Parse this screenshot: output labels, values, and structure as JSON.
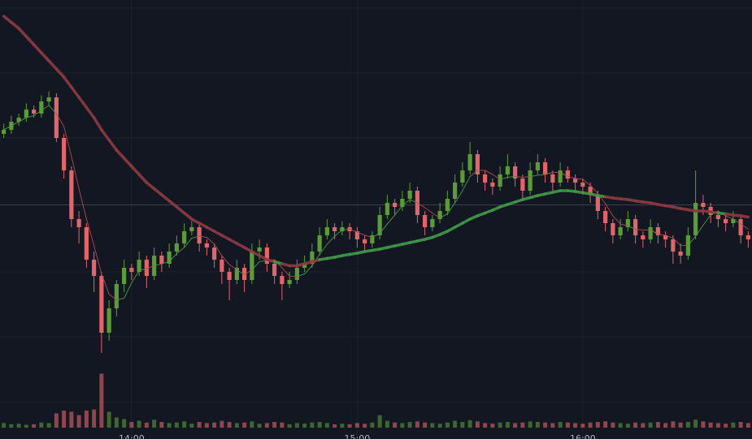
{
  "chart_data": {
    "type": "candlestick",
    "xlim": [
      0,
      100
    ],
    "xticks": [
      {
        "value": 17.5,
        "label": "14:00"
      },
      {
        "value": 47.5,
        "label": "15:00"
      },
      {
        "value": 77.5,
        "label": "16:00"
      }
    ],
    "ylim": [
      0,
      100
    ],
    "yticks": [
      1,
      17,
      33,
      49.5,
      66,
      82,
      98
    ],
    "price_line": 49.5,
    "vlim": [
      0,
      100
    ],
    "grid": true,
    "up_color": "#5b9c3a",
    "down_color": "#e2656b",
    "candles": [
      [
        67,
        69.5,
        66,
        68
      ],
      [
        68,
        71.5,
        67,
        70
      ],
      [
        70,
        72,
        69,
        71
      ],
      [
        71,
        74.5,
        70,
        73
      ],
      [
        73,
        74,
        71,
        72
      ],
      [
        72,
        76.5,
        71,
        75
      ],
      [
        75,
        77.5,
        74,
        76
      ],
      [
        76,
        77,
        65,
        66
      ],
      [
        66,
        67,
        56,
        58
      ],
      [
        58,
        59,
        44,
        46
      ],
      [
        46,
        48,
        40,
        44
      ],
      [
        44,
        45,
        34,
        36
      ],
      [
        36,
        38,
        28,
        32
      ],
      [
        32,
        33,
        13,
        18
      ],
      [
        18,
        26,
        16,
        24
      ],
      [
        24,
        31,
        22,
        30
      ],
      [
        30,
        36,
        28,
        34
      ],
      [
        34,
        35,
        31,
        33
      ],
      [
        33,
        38,
        32,
        36
      ],
      [
        36,
        37,
        29,
        32
      ],
      [
        32,
        39,
        31,
        37
      ],
      [
        37,
        38,
        33,
        35
      ],
      [
        35,
        40,
        34,
        38
      ],
      [
        38,
        42,
        37,
        40
      ],
      [
        40,
        45,
        39,
        43
      ],
      [
        43,
        45.5,
        42,
        44
      ],
      [
        44,
        45,
        38,
        40
      ],
      [
        40,
        41,
        37,
        39
      ],
      [
        39,
        40,
        34,
        36
      ],
      [
        36,
        37,
        30,
        33
      ],
      [
        33,
        34,
        26,
        31
      ],
      [
        31,
        36,
        30,
        34
      ],
      [
        34,
        35,
        28,
        31
      ],
      [
        31,
        40,
        30,
        38
      ],
      [
        38,
        41,
        36,
        39
      ],
      [
        39,
        40,
        33,
        35
      ],
      [
        35,
        36,
        30,
        32
      ],
      [
        32,
        33,
        26,
        30
      ],
      [
        30,
        33,
        29,
        31
      ],
      [
        31,
        36,
        30,
        34
      ],
      [
        34,
        37,
        33,
        35
      ],
      [
        35,
        40,
        34,
        38
      ],
      [
        38,
        44,
        37,
        42
      ],
      [
        42,
        46,
        41,
        44
      ],
      [
        44,
        45,
        41,
        43
      ],
      [
        43,
        45.5,
        42,
        44
      ],
      [
        44,
        45,
        41,
        43
      ],
      [
        43,
        44,
        39,
        41
      ],
      [
        41,
        42,
        38,
        40
      ],
      [
        40,
        43,
        39,
        42
      ],
      [
        42,
        49,
        41,
        47
      ],
      [
        47,
        52,
        46,
        50
      ],
      [
        50,
        51,
        47,
        49
      ],
      [
        49,
        53,
        48,
        51
      ],
      [
        51,
        55,
        50,
        53
      ],
      [
        53,
        54,
        45,
        47
      ],
      [
        47,
        48,
        42,
        44
      ],
      [
        44,
        47,
        43,
        46
      ],
      [
        46,
        50,
        45,
        48
      ],
      [
        48,
        53,
        47,
        51
      ],
      [
        51,
        57,
        50,
        55
      ],
      [
        55,
        60,
        54,
        58
      ],
      [
        58,
        65,
        57,
        62
      ],
      [
        62,
        63,
        55,
        57
      ],
      [
        57,
        58,
        53,
        55
      ],
      [
        55,
        56,
        52,
        54
      ],
      [
        54,
        59,
        53,
        57
      ],
      [
        57,
        62,
        56,
        59
      ],
      [
        59,
        60,
        54,
        56
      ],
      [
        56,
        57,
        51,
        53
      ],
      [
        53,
        60,
        52,
        58
      ],
      [
        58,
        62,
        57,
        60
      ],
      [
        60,
        61,
        55,
        57
      ],
      [
        57,
        58,
        53,
        55
      ],
      [
        55,
        60,
        54,
        58
      ],
      [
        58,
        59,
        55,
        56
      ],
      [
        56,
        57,
        53,
        55
      ],
      [
        55,
        56,
        52,
        54
      ],
      [
        54,
        55,
        50,
        52
      ],
      [
        52,
        53,
        46,
        48
      ],
      [
        48,
        49,
        43,
        45
      ],
      [
        45,
        46,
        40,
        42
      ],
      [
        42,
        46,
        41,
        44
      ],
      [
        44,
        48,
        43,
        46
      ],
      [
        46,
        47,
        40,
        42
      ],
      [
        42,
        43,
        39,
        41
      ],
      [
        41,
        46,
        40,
        44
      ],
      [
        44,
        45,
        40,
        42
      ],
      [
        42,
        43,
        39,
        41
      ],
      [
        41,
        42,
        35,
        38
      ],
      [
        38,
        40,
        35,
        37
      ],
      [
        37,
        44,
        36,
        42
      ],
      [
        42,
        58,
        41,
        50
      ],
      [
        50,
        52,
        47,
        49
      ],
      [
        49,
        50,
        45,
        47
      ],
      [
        47,
        48,
        44,
        46
      ],
      [
        46,
        47,
        43,
        45
      ],
      [
        45,
        48,
        44,
        46
      ],
      [
        46,
        47,
        40,
        42
      ],
      [
        42,
        43,
        39,
        41
      ]
    ],
    "volume": [
      8,
      6,
      7,
      5,
      6,
      9,
      8,
      25,
      30,
      28,
      22,
      30,
      32,
      95,
      28,
      18,
      15,
      10,
      12,
      9,
      14,
      10,
      8,
      9,
      11,
      7,
      10,
      8,
      9,
      12,
      10,
      8,
      9,
      11,
      7,
      8,
      10,
      9,
      6,
      8,
      7,
      9,
      10,
      8,
      6,
      7,
      6,
      8,
      7,
      9,
      22,
      12,
      9,
      8,
      10,
      11,
      9,
      8,
      7,
      9,
      12,
      10,
      13,
      11,
      8,
      7,
      9,
      10,
      8,
      9,
      11,
      10,
      9,
      8,
      10,
      9,
      8,
      7,
      9,
      10,
      11,
      9,
      8,
      7,
      9,
      8,
      9,
      10,
      8,
      11,
      9,
      10,
      14,
      11,
      9,
      8,
      7,
      9,
      10,
      8
    ],
    "series": [
      {
        "color_up": "#4a9a3c",
        "color_down": "#b04a50",
        "width": 1,
        "values": [
          68,
          69,
          70,
          71,
          71.5,
          72.8,
          74,
          72,
          68.8,
          61.5,
          53.5,
          46,
          39.5,
          32.5,
          27.5,
          26,
          26.5,
          30.3,
          33.3,
          33.8,
          34.5,
          35,
          35.5,
          37.5,
          39,
          41.3,
          41.8,
          41.5,
          39.8,
          37,
          34.8,
          33.5,
          32.3,
          33.5,
          35.5,
          35.8,
          36,
          34,
          32,
          31.8,
          32.5,
          34.5,
          37.3,
          39.8,
          41.8,
          43.3,
          43.5,
          42.8,
          42,
          41.5,
          42.5,
          44.8,
          47,
          49.3,
          50.8,
          50,
          48.8,
          47.5,
          46.3,
          47.3,
          50,
          53,
          56.5,
          58,
          58,
          57,
          55.8,
          56.3,
          56.5,
          56.3,
          56.5,
          56.8,
          57,
          57.5,
          57.5,
          56.5,
          56,
          55.8,
          54.3,
          52.3,
          49.8,
          46.8,
          44.8,
          44.3,
          43.5,
          43.3,
          43.3,
          42.3,
          42,
          41.3,
          39.5,
          39.5,
          41.8,
          44.5,
          47,
          48,
          46.8,
          46,
          44.8,
          43.5
        ]
      },
      {
        "color_up": "#3f9a45",
        "color_down": "#8e3b40",
        "width": 3.5,
        "values": [
          96,
          94.5,
          93,
          91,
          89,
          87,
          85,
          83,
          81,
          78.5,
          76,
          73.5,
          71,
          68,
          65.5,
          63,
          61,
          59,
          57,
          55,
          53.5,
          52,
          50.5,
          49,
          47.5,
          46,
          45,
          44,
          43,
          42,
          41,
          40,
          39,
          38,
          37,
          36,
          35.5,
          35,
          34.5,
          34.5,
          35,
          35.5,
          36,
          36.3,
          36.6,
          37,
          37.3,
          37.6,
          38,
          38.3,
          38.6,
          39,
          39.4,
          39.8,
          40.2,
          40.6,
          41,
          41.5,
          42.2,
          43,
          44,
          45,
          46,
          46.8,
          47.5,
          48.2,
          49,
          49.6,
          50.2,
          50.8,
          51.3,
          51.8,
          52.2,
          52.6,
          53,
          53,
          52.8,
          52.5,
          52.2,
          51.8,
          51.5,
          51.2,
          51,
          50.8,
          50.5,
          50.2,
          50,
          49.6,
          49.3,
          49,
          48.6,
          48.3,
          48,
          48,
          47.8,
          47.5,
          47.3,
          47,
          46.8,
          46.5
        ]
      }
    ]
  }
}
